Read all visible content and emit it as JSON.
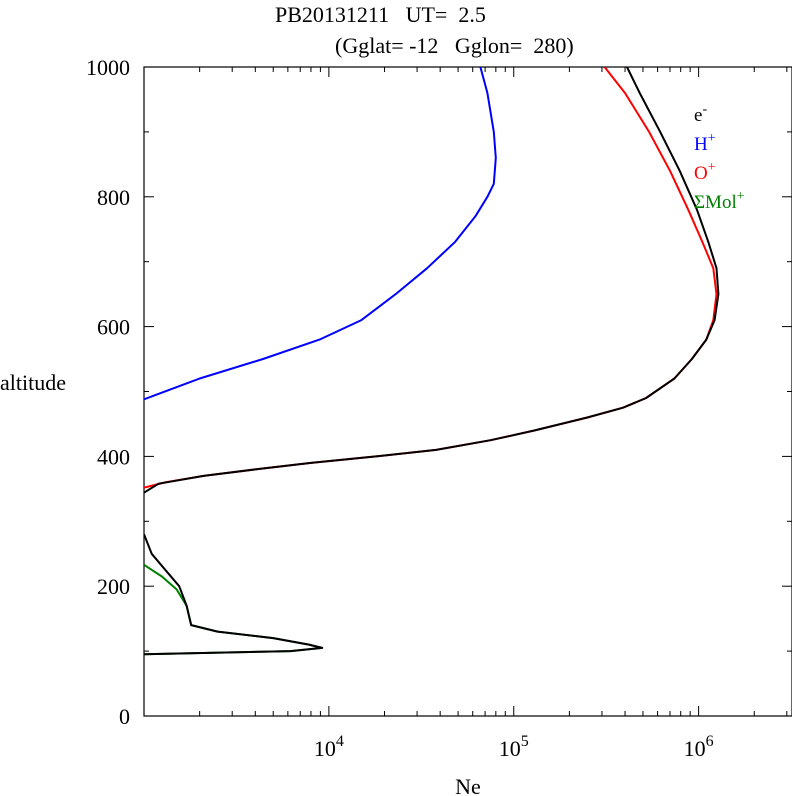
{
  "title": {
    "line1": "PB20131211   UT=  2.5",
    "line2": "(Gglat= -12   Gglon=  280)"
  },
  "chart_data": {
    "type": "line",
    "xlabel": "Ne",
    "ylabel": "altitude",
    "x_scale": "log",
    "xlim": [
      1000,
      3200000
    ],
    "ylim": [
      0,
      1000
    ],
    "y_ticks": [
      0,
      200,
      400,
      600,
      800,
      1000
    ],
    "y_tick_labels": [
      "0",
      "200",
      "400",
      "600",
      "800",
      "1000"
    ],
    "x_ticks": [
      10000,
      100000,
      1000000
    ],
    "x_tick_labels": [
      {
        "base": "10",
        "exp": "4"
      },
      {
        "base": "10",
        "exp": "5"
      },
      {
        "base": "10",
        "exp": "6"
      }
    ],
    "legend_position": "right",
    "series": [
      {
        "name": "H+",
        "label_base": "H",
        "label_sup": "+",
        "color": "#0000ff",
        "points": [
          [
            1000,
            488
          ],
          [
            2000,
            520
          ],
          [
            4400,
            550
          ],
          [
            8900,
            580
          ],
          [
            15000,
            610
          ],
          [
            23000,
            650
          ],
          [
            34000,
            690
          ],
          [
            48000,
            730
          ],
          [
            62000,
            770
          ],
          [
            72000,
            800
          ],
          [
            78000,
            820
          ],
          [
            80000,
            860
          ],
          [
            78000,
            900
          ],
          [
            72000,
            960
          ],
          [
            66000,
            1000
          ]
        ]
      },
      {
        "name": "O+",
        "label_base": "O",
        "label_sup": "+",
        "color": "#ff0000",
        "points": [
          [
            1000,
            352
          ],
          [
            1300,
            360
          ],
          [
            2100,
            370
          ],
          [
            4000,
            380
          ],
          [
            8000,
            390
          ],
          [
            18000,
            400
          ],
          [
            38000,
            410
          ],
          [
            75000,
            425
          ],
          [
            130000,
            440
          ],
          [
            250000,
            460
          ],
          [
            390000,
            475
          ],
          [
            520000,
            490
          ],
          [
            740000,
            520
          ],
          [
            920000,
            550
          ],
          [
            1100000,
            580
          ],
          [
            1200000,
            610
          ],
          [
            1250000,
            650
          ],
          [
            1200000,
            690
          ],
          [
            1050000,
            730
          ],
          [
            880000,
            780
          ],
          [
            700000,
            840
          ],
          [
            540000,
            900
          ],
          [
            400000,
            960
          ],
          [
            310000,
            1000
          ]
        ]
      },
      {
        "name": "ΣMol+",
        "label_base": "ΣMol",
        "label_sup": "+",
        "color": "#008000",
        "points": [
          [
            1000,
            233
          ],
          [
            1250,
            215
          ],
          [
            1500,
            195
          ],
          [
            1700,
            170
          ],
          [
            1800,
            140
          ],
          [
            2500,
            130
          ],
          [
            5000,
            120
          ],
          [
            7800,
            110
          ],
          [
            9200,
            105
          ],
          [
            6200,
            100
          ],
          [
            1000,
            95
          ]
        ]
      },
      {
        "name": "e-",
        "label_base": "e",
        "label_sup": "-",
        "color": "#000000",
        "points": [
          [
            1000,
            95
          ],
          [
            6200,
            100
          ],
          [
            9200,
            105
          ],
          [
            7800,
            110
          ],
          [
            5000,
            120
          ],
          [
            2500,
            130
          ],
          [
            1800,
            140
          ],
          [
            1700,
            170
          ],
          [
            1550,
            200
          ],
          [
            1350,
            220
          ],
          [
            1100,
            250
          ],
          [
            1000,
            280
          ],
          null,
          [
            1000,
            344
          ],
          [
            1200,
            358
          ],
          [
            2100,
            370
          ],
          [
            4000,
            380
          ],
          [
            8000,
            390
          ],
          [
            18000,
            400
          ],
          [
            38000,
            410
          ],
          [
            75000,
            425
          ],
          [
            130000,
            440
          ],
          [
            250000,
            460
          ],
          [
            390000,
            475
          ],
          [
            520000,
            490
          ],
          [
            740000,
            520
          ],
          [
            920000,
            550
          ],
          [
            1100000,
            580
          ],
          [
            1220000,
            610
          ],
          [
            1280000,
            650
          ],
          [
            1250000,
            690
          ],
          [
            1130000,
            730
          ],
          [
            980000,
            780
          ],
          [
            790000,
            840
          ],
          [
            620000,
            900
          ],
          [
            480000,
            960
          ],
          [
            410000,
            1000
          ]
        ]
      }
    ],
    "legend_order": [
      "e-",
      "H+",
      "O+",
      "ΣMol+"
    ]
  }
}
